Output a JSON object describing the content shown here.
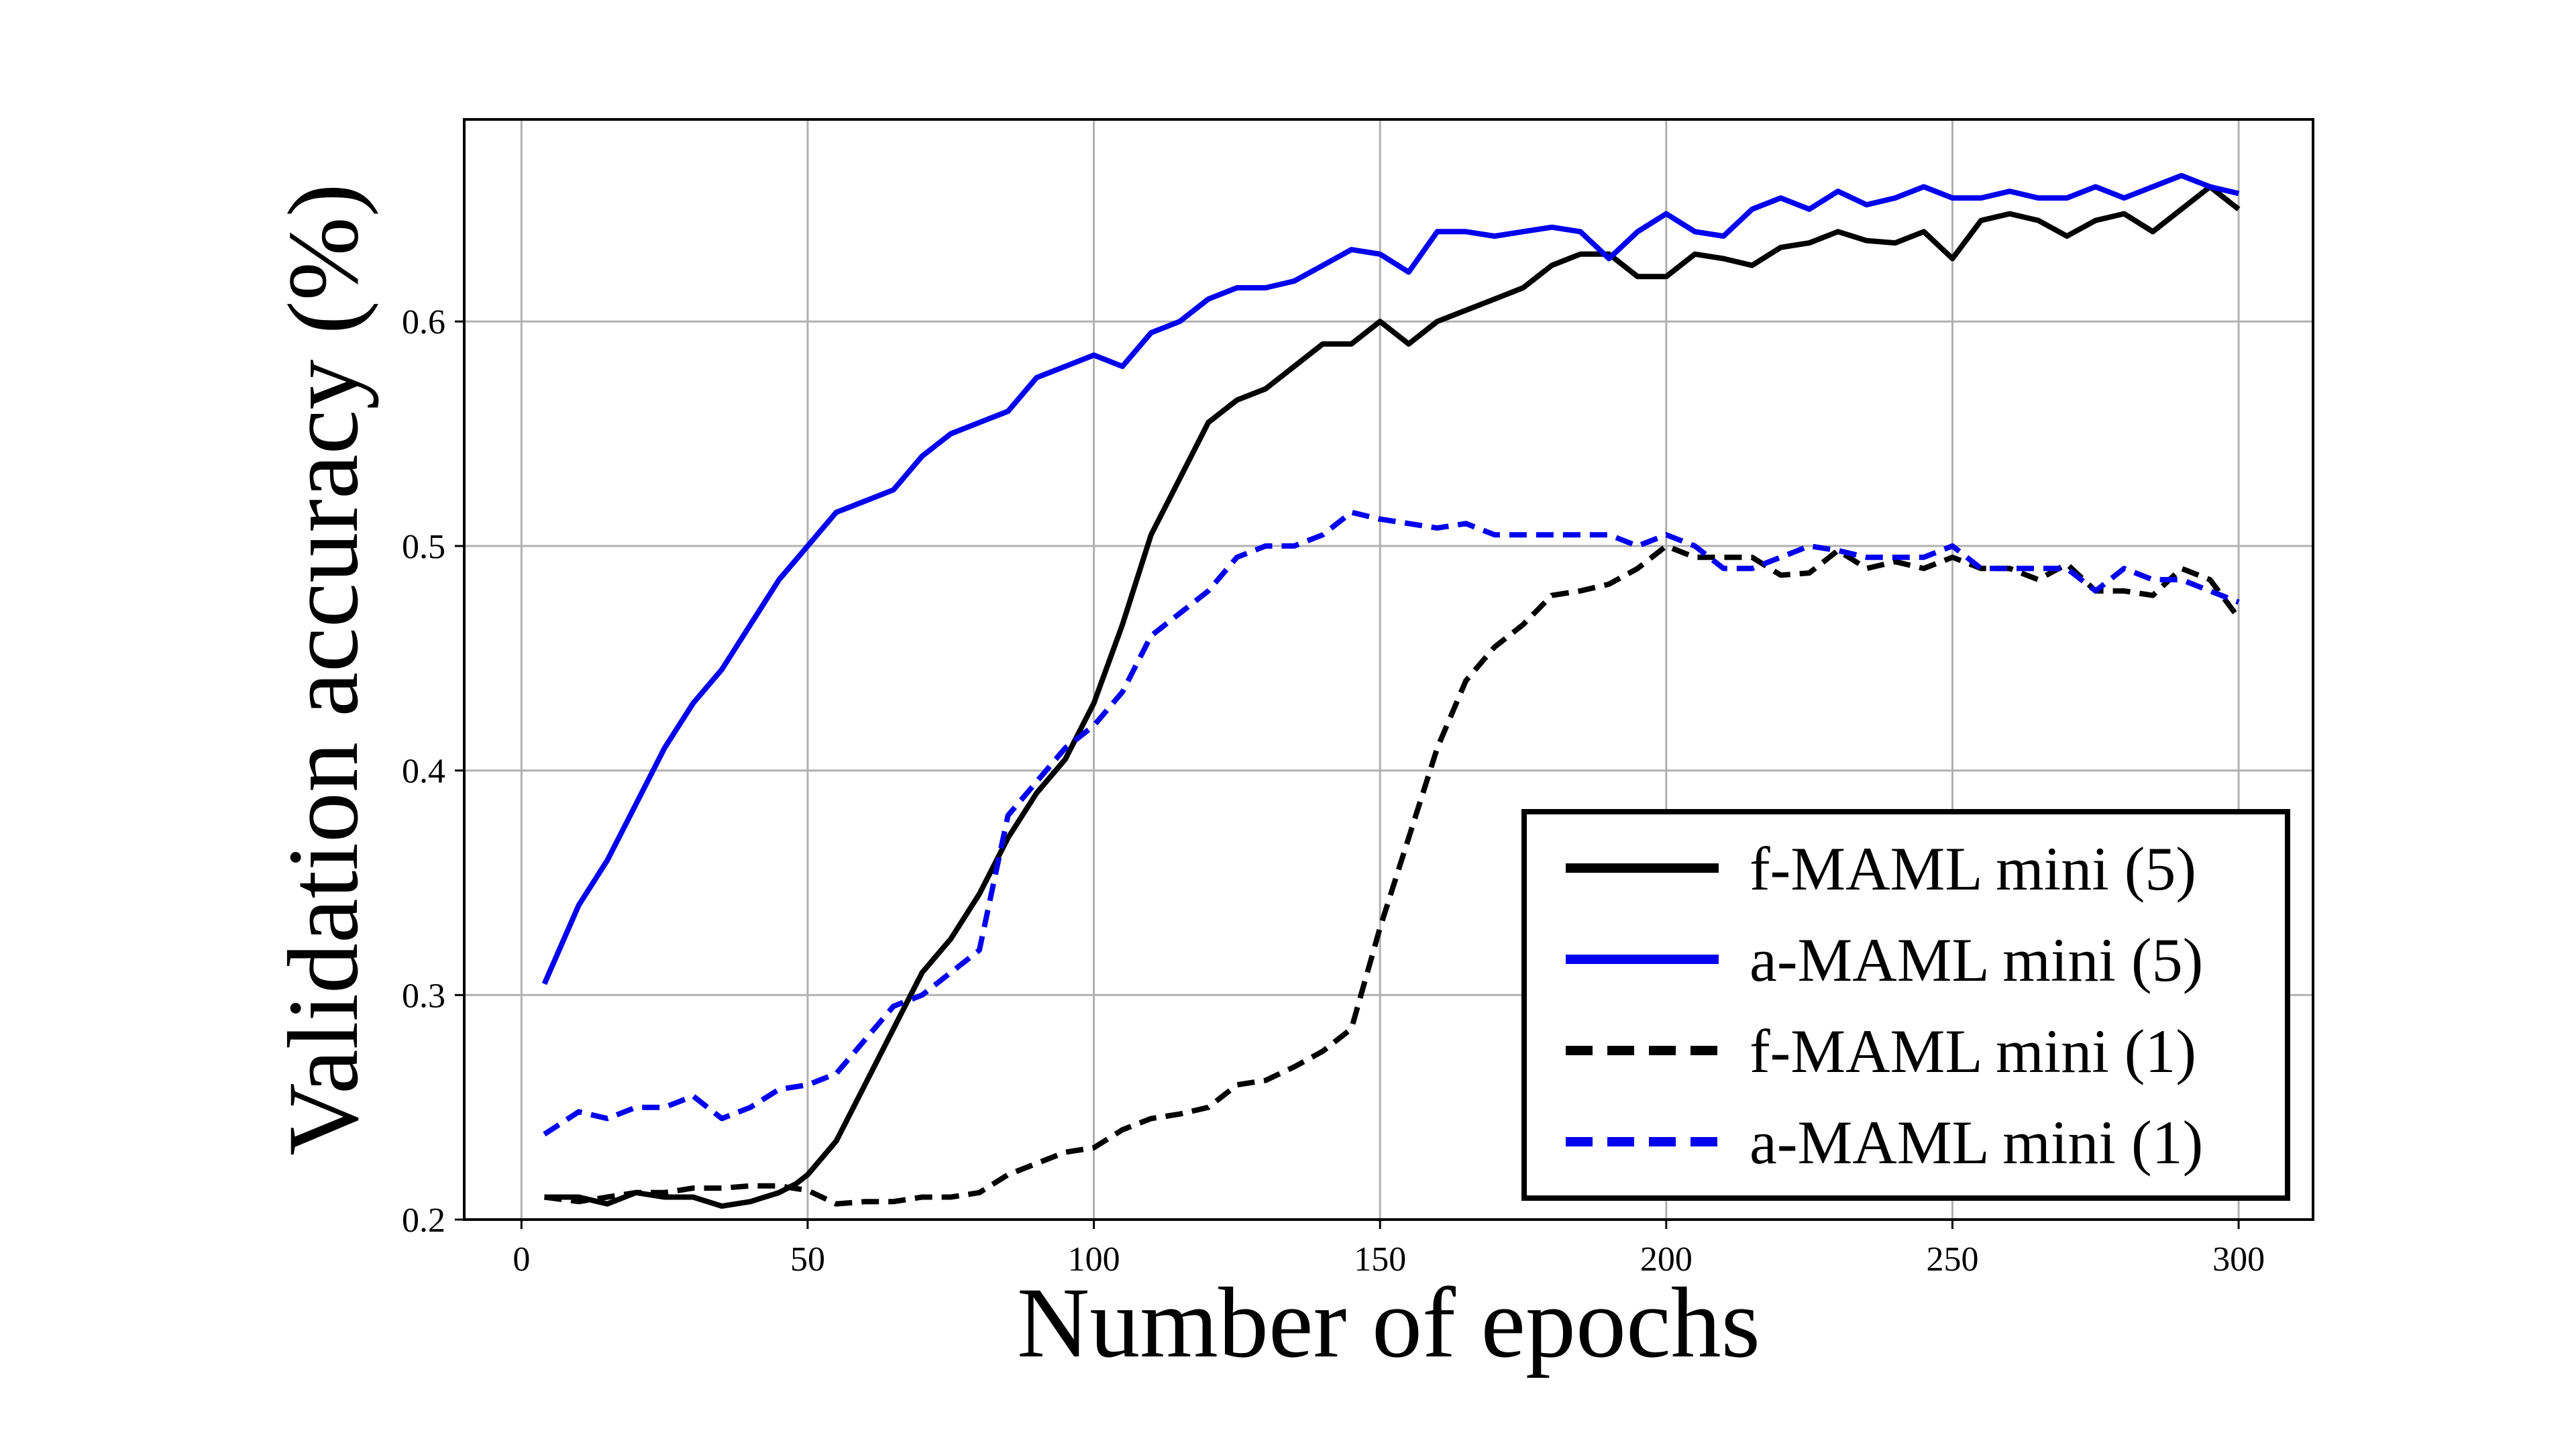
{
  "chart_data": {
    "type": "line",
    "title": "",
    "xlabel": "Number of epochs",
    "ylabel": "Validation accuracy (%)",
    "xlim": [
      -10,
      313
    ],
    "ylim": [
      0.2,
      0.69
    ],
    "xticks": [
      0,
      50,
      100,
      150,
      200,
      250,
      300
    ],
    "yticks": [
      0.2,
      0.3,
      0.4,
      0.5,
      0.6
    ],
    "xtick_labels": [
      "0",
      "50",
      "100",
      "150",
      "200",
      "250",
      "300"
    ],
    "ytick_labels": [
      "0.2",
      "0.3",
      "0.4",
      "0.5",
      "0.6"
    ],
    "grid": true,
    "legend_position": "lower-right",
    "series": [
      {
        "name": "f-MAML mini (5)",
        "color": "#000000",
        "dashed": false,
        "x": [
          4,
          10,
          15,
          20,
          25,
          30,
          35,
          40,
          45,
          48,
          50,
          55,
          60,
          65,
          70,
          75,
          80,
          85,
          90,
          95,
          100,
          105,
          110,
          115,
          120,
          125,
          130,
          135,
          140,
          145,
          150,
          155,
          160,
          165,
          170,
          175,
          180,
          185,
          190,
          195,
          200,
          205,
          210,
          215,
          220,
          225,
          230,
          235,
          240,
          245,
          250,
          255,
          260,
          265,
          270,
          275,
          280,
          285,
          290,
          295,
          300
        ],
        "y": [
          0.21,
          0.21,
          0.207,
          0.212,
          0.21,
          0.21,
          0.206,
          0.208,
          0.212,
          0.216,
          0.22,
          0.235,
          0.26,
          0.285,
          0.31,
          0.325,
          0.345,
          0.37,
          0.39,
          0.405,
          0.43,
          0.465,
          0.505,
          0.53,
          0.555,
          0.565,
          0.57,
          0.58,
          0.59,
          0.59,
          0.6,
          0.59,
          0.6,
          0.605,
          0.61,
          0.615,
          0.625,
          0.63,
          0.63,
          0.62,
          0.62,
          0.63,
          0.628,
          0.625,
          0.633,
          0.635,
          0.64,
          0.636,
          0.635,
          0.64,
          0.628,
          0.645,
          0.648,
          0.645,
          0.638,
          0.645,
          0.648,
          0.64,
          0.65,
          0.66,
          0.65
        ]
      },
      {
        "name": "a-MAML mini (5)",
        "color": "#0000ee",
        "dashed": false,
        "x": [
          4,
          10,
          15,
          20,
          25,
          30,
          35,
          40,
          45,
          50,
          55,
          60,
          65,
          70,
          75,
          80,
          85,
          90,
          95,
          100,
          105,
          110,
          115,
          120,
          125,
          130,
          135,
          140,
          145,
          150,
          155,
          160,
          165,
          170,
          175,
          180,
          185,
          190,
          195,
          200,
          205,
          210,
          215,
          220,
          225,
          230,
          235,
          240,
          245,
          250,
          255,
          260,
          265,
          270,
          275,
          280,
          285,
          290,
          295,
          300
        ],
        "y": [
          0.305,
          0.34,
          0.36,
          0.385,
          0.41,
          0.43,
          0.445,
          0.465,
          0.485,
          0.5,
          0.515,
          0.52,
          0.525,
          0.54,
          0.55,
          0.555,
          0.56,
          0.575,
          0.58,
          0.585,
          0.58,
          0.595,
          0.6,
          0.61,
          0.615,
          0.615,
          0.618,
          0.625,
          0.632,
          0.63,
          0.622,
          0.64,
          0.64,
          0.638,
          0.64,
          0.642,
          0.64,
          0.628,
          0.64,
          0.648,
          0.64,
          0.638,
          0.65,
          0.655,
          0.65,
          0.658,
          0.652,
          0.655,
          0.66,
          0.655,
          0.655,
          0.658,
          0.655,
          0.655,
          0.66,
          0.655,
          0.66,
          0.665,
          0.66,
          0.657
        ]
      },
      {
        "name": "f-MAML mini (1)",
        "color": "#000000",
        "dashed": true,
        "x": [
          4,
          10,
          15,
          20,
          25,
          30,
          35,
          40,
          45,
          50,
          55,
          60,
          65,
          70,
          75,
          80,
          85,
          90,
          95,
          100,
          105,
          110,
          115,
          120,
          125,
          130,
          135,
          140,
          145,
          150,
          155,
          160,
          165,
          170,
          175,
          180,
          185,
          190,
          195,
          200,
          205,
          210,
          215,
          220,
          225,
          230,
          235,
          240,
          245,
          250,
          255,
          260,
          265,
          270,
          275,
          280,
          285,
          290,
          295,
          300
        ],
        "y": [
          0.21,
          0.208,
          0.21,
          0.212,
          0.212,
          0.214,
          0.214,
          0.215,
          0.215,
          0.213,
          0.207,
          0.208,
          0.208,
          0.21,
          0.21,
          0.212,
          0.22,
          0.225,
          0.23,
          0.232,
          0.24,
          0.245,
          0.247,
          0.25,
          0.26,
          0.262,
          0.268,
          0.275,
          0.285,
          0.33,
          0.37,
          0.41,
          0.44,
          0.455,
          0.465,
          0.478,
          0.48,
          0.483,
          0.49,
          0.5,
          0.495,
          0.495,
          0.495,
          0.487,
          0.488,
          0.498,
          0.49,
          0.493,
          0.49,
          0.495,
          0.49,
          0.49,
          0.485,
          0.492,
          0.48,
          0.48,
          0.478,
          0.49,
          0.485,
          0.468
        ]
      },
      {
        "name": "a-MAML mini (1)",
        "color": "#0000ee",
        "dashed": true,
        "x": [
          4,
          10,
          15,
          20,
          25,
          30,
          35,
          40,
          45,
          50,
          55,
          60,
          65,
          70,
          75,
          80,
          85,
          90,
          95,
          100,
          105,
          110,
          115,
          120,
          125,
          130,
          135,
          140,
          145,
          150,
          155,
          160,
          165,
          170,
          175,
          180,
          185,
          190,
          195,
          200,
          205,
          210,
          215,
          220,
          225,
          230,
          235,
          240,
          245,
          250,
          255,
          260,
          265,
          270,
          275,
          280,
          285,
          290,
          295,
          300
        ],
        "y": [
          0.238,
          0.248,
          0.245,
          0.25,
          0.25,
          0.255,
          0.245,
          0.25,
          0.258,
          0.26,
          0.265,
          0.28,
          0.295,
          0.3,
          0.31,
          0.32,
          0.38,
          0.395,
          0.41,
          0.42,
          0.435,
          0.46,
          0.47,
          0.48,
          0.495,
          0.5,
          0.5,
          0.505,
          0.515,
          0.512,
          0.51,
          0.508,
          0.51,
          0.505,
          0.505,
          0.505,
          0.505,
          0.505,
          0.5,
          0.505,
          0.5,
          0.49,
          0.49,
          0.495,
          0.5,
          0.498,
          0.495,
          0.495,
          0.495,
          0.5,
          0.49,
          0.49,
          0.49,
          0.49,
          0.48,
          0.49,
          0.485,
          0.485,
          0.48,
          0.475
        ]
      }
    ]
  }
}
